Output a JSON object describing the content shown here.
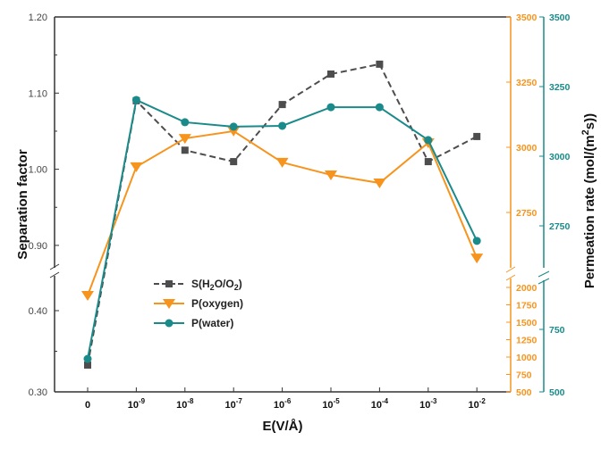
{
  "chart_data": {
    "type": "line",
    "xlabel": "E(V/Å)",
    "categories": [
      "0",
      "10^-9",
      "10^-8",
      "10^-7",
      "10^-6",
      "10^-5",
      "10^-4",
      "10^-3",
      "10^-2"
    ],
    "category_labels": [
      {
        "base": "0",
        "exp": ""
      },
      {
        "base": "10",
        "exp": "-9"
      },
      {
        "base": "10",
        "exp": "-8"
      },
      {
        "base": "10",
        "exp": "-7"
      },
      {
        "base": "10",
        "exp": "-6"
      },
      {
        "base": "10",
        "exp": "-5"
      },
      {
        "base": "10",
        "exp": "-4"
      },
      {
        "base": "10",
        "exp": "-3"
      },
      {
        "base": "10",
        "exp": "-2"
      }
    ],
    "axes": {
      "left": {
        "label": "Separation factor",
        "broken": true,
        "upper_range": [
          0.87,
          1.2
        ],
        "lower_range": [
          0.3,
          0.44
        ],
        "ticks": [
          "1.20",
          "1.10",
          "1.00",
          "0.90",
          "0.40",
          "0.30"
        ],
        "color": "#333333"
      },
      "right_oxygen": {
        "broken": true,
        "upper_range": [
          2540,
          3500
        ],
        "lower_range": [
          500,
          2000
        ],
        "ticks": [
          "3500",
          "3250",
          "3000",
          "2750",
          "2000",
          "1750",
          "1500",
          "1250",
          "1000",
          "750",
          "500"
        ],
        "color": "#f7941d"
      },
      "right_water": {
        "label": "Permeation rate (mol/(m²s))",
        "label_parts": {
          "main": "Permeation rate (mol/(m",
          "sup": "2",
          "tail": "s))"
        },
        "broken": true,
        "upper_range": [
          2560,
          3500
        ],
        "lower_range": [
          500,
          800
        ],
        "ticks": [
          "3500",
          "3250",
          "3000",
          "2750",
          "750",
          "500"
        ],
        "color": "#1a8a8a"
      }
    },
    "series": [
      {
        "name": "S(H2O/O2)",
        "legend": {
          "main": "S(H",
          "s1": "2",
          "mid": "O/O",
          "s2": "2",
          "end": ")"
        },
        "axis": "left",
        "marker": "square",
        "dash": true,
        "color": "#4d4d4d",
        "values": [
          0.333,
          1.09,
          1.025,
          1.01,
          1.085,
          1.125,
          1.138,
          1.01,
          1.043
        ]
      },
      {
        "name": "P(oxygen)",
        "axis": "right_oxygen",
        "marker": "triangle-down",
        "dash": false,
        "color": "#f7941d",
        "values": [
          1885,
          2925,
          3034,
          3062,
          2942,
          2894,
          2863,
          3017,
          2575
        ]
      },
      {
        "name": "P(water)",
        "axis": "right_water",
        "marker": "circle",
        "dash": false,
        "color": "#1a8a8a",
        "values": [
          632,
          3202,
          3122,
          3106,
          3109,
          3176,
          3176,
          3058,
          2696
        ]
      }
    ],
    "legend_position": "lower-left",
    "grid": false
  }
}
